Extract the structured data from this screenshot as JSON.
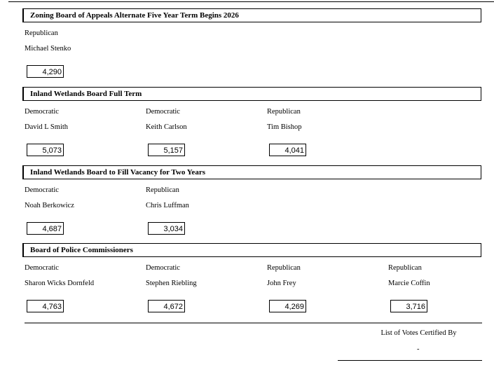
{
  "sections": [
    {
      "title": "Zoning Board of Appeals Alternate Five Year Term Begins 2026",
      "candidates": [
        {
          "party": "Republican",
          "name": "Michael Stenko",
          "votes": "4,290"
        }
      ]
    },
    {
      "title": "Inland Wetlands Board Full Term",
      "candidates": [
        {
          "party": "Democratic",
          "name": "David L Smith",
          "votes": "5,073"
        },
        {
          "party": "Democratic",
          "name": "Keith Carlson",
          "votes": "5,157"
        },
        {
          "party": "Republican",
          "name": "Tim Bishop",
          "votes": "4,041"
        }
      ]
    },
    {
      "title": "Inland Wetlands Board to Fill Vacancy for Two Years",
      "candidates": [
        {
          "party": "Democratic",
          "name": "Noah Berkowicz",
          "votes": "4,687"
        },
        {
          "party": "Republican",
          "name": "Chris Luffman",
          "votes": "3,034"
        }
      ]
    },
    {
      "title": "Board of Police Commissioners",
      "candidates": [
        {
          "party": "Democratic",
          "name": "Sharon Wicks Dornfeld",
          "votes": "4,763"
        },
        {
          "party": "Democratic",
          "name": "Stephen Riebling",
          "votes": "4,672"
        },
        {
          "party": "Republican",
          "name": "John Frey",
          "votes": "4,269"
        },
        {
          "party": "Republican",
          "name": "Marcie Coffin",
          "votes": "3,716"
        }
      ]
    }
  ],
  "footer": {
    "certified_label": "List of Votes Certified By",
    "signature": "-"
  }
}
